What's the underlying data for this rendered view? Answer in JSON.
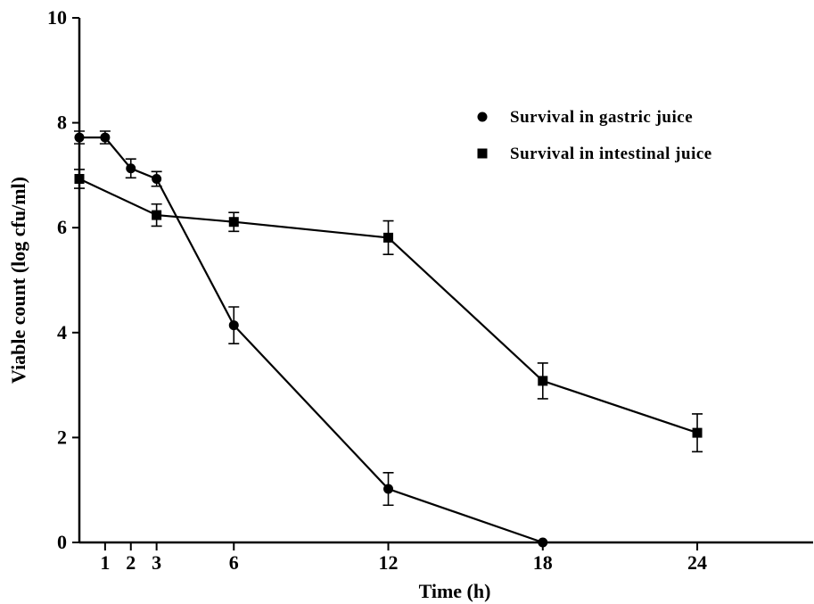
{
  "chart_data": {
    "type": "line",
    "xlabel": "Time (h)",
    "ylabel": "Viable count (log cfu/ml)",
    "xlim": [
      0,
      28.5
    ],
    "ylim": [
      0,
      10
    ],
    "x_ticks": [
      1,
      2,
      3,
      6,
      12,
      18,
      24
    ],
    "x_tick_labels": [
      "1",
      "2",
      "3",
      "6",
      "12",
      "18",
      "24"
    ],
    "y_ticks": [
      0,
      2,
      4,
      6,
      8,
      10
    ],
    "y_tick_labels": [
      "0",
      "2",
      "4",
      "6",
      "8",
      "10"
    ],
    "grid": false,
    "legend_position": "top-right",
    "series": [
      {
        "name": "Survival in gastric juice",
        "marker": "circle",
        "x": [
          0,
          1,
          2,
          3,
          6,
          12,
          18
        ],
        "y": [
          7.72,
          7.72,
          7.13,
          6.93,
          4.14,
          1.02,
          0.0
        ],
        "err": [
          0.12,
          0.12,
          0.18,
          0.14,
          0.35,
          0.31,
          0.0
        ]
      },
      {
        "name": "Survival in intestinal juice",
        "marker": "square",
        "x": [
          0,
          3,
          6,
          12,
          18,
          24
        ],
        "y": [
          6.93,
          6.24,
          6.11,
          5.81,
          3.08,
          2.09
        ],
        "err": [
          0.18,
          0.21,
          0.18,
          0.32,
          0.34,
          0.36
        ]
      }
    ]
  }
}
